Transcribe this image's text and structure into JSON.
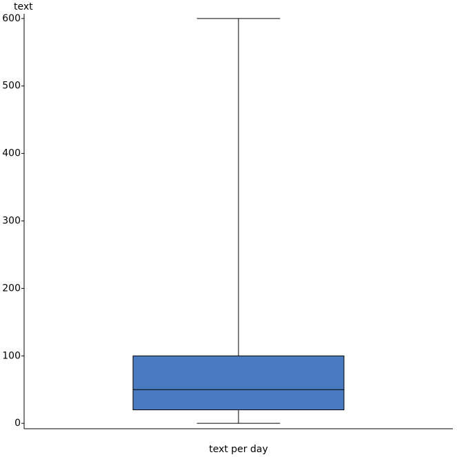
{
  "chart_data": {
    "type": "box",
    "y_label": "text",
    "categories": [
      "text per day"
    ],
    "boxes": [
      {
        "min": 0,
        "q1": 20,
        "median": 50,
        "q3": 100,
        "max": 600
      }
    ],
    "color": "#4a7abf",
    "ylim": [
      -8,
      607
    ],
    "yticks": [
      0,
      100,
      200,
      300,
      400,
      500,
      600
    ]
  }
}
